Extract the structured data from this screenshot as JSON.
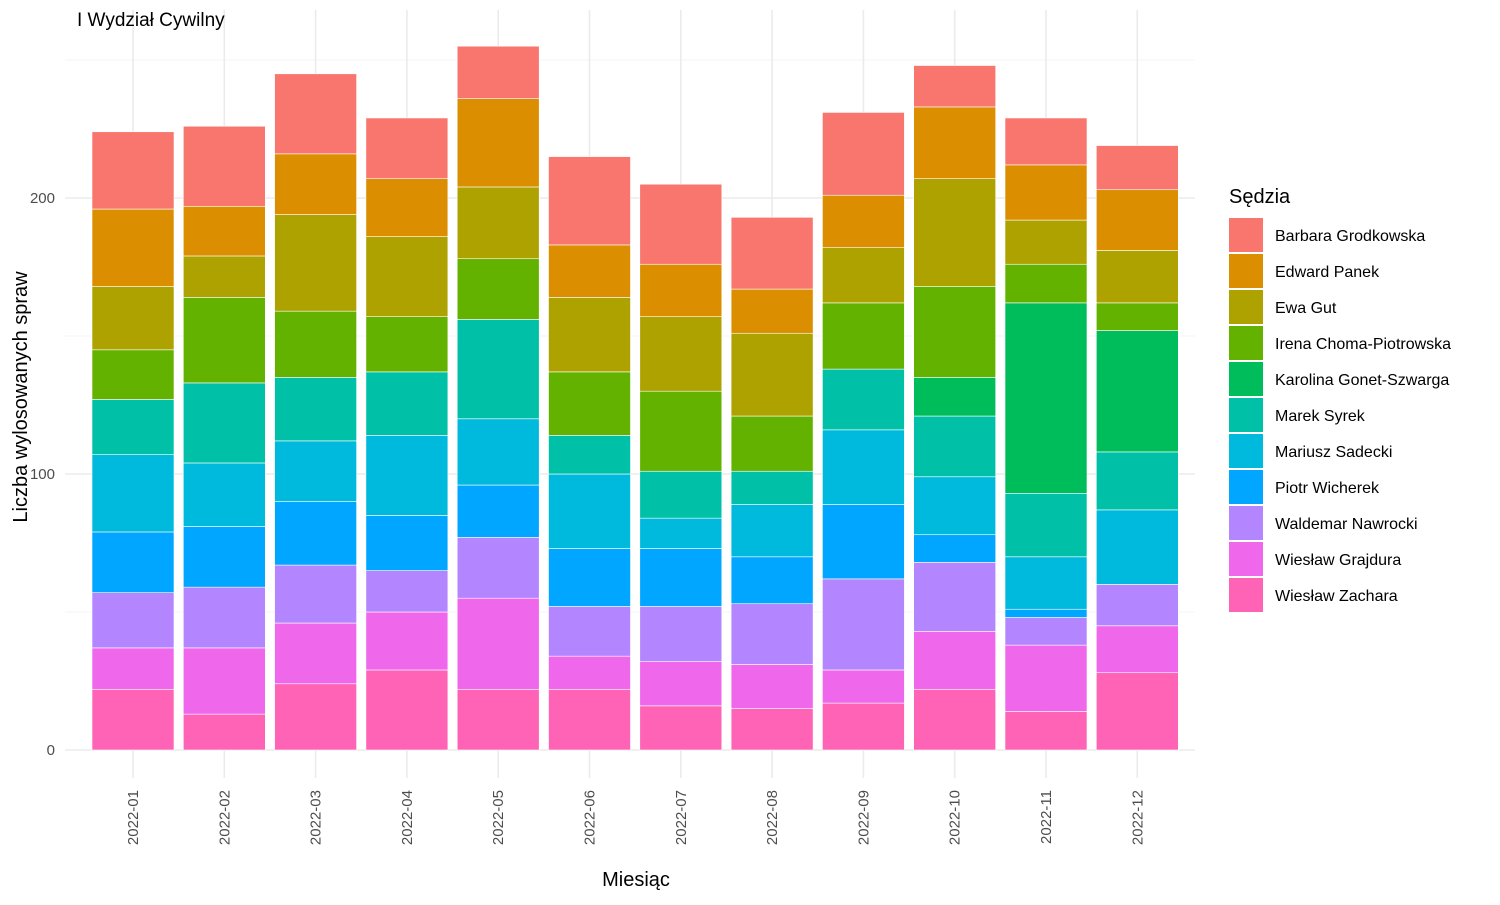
{
  "chart_data": {
    "type": "bar",
    "stacked": true,
    "title": "I Wydział Cywilny",
    "xlabel": "Miesiąc",
    "ylabel": "Liczba wylosowanych spraw",
    "ylim": [
      0,
      265
    ],
    "yticks": [
      0,
      100,
      200
    ],
    "grid": true,
    "legend_title": "Sędzia",
    "legend_position": "right",
    "categories": [
      "2022-01",
      "2022-02",
      "2022-03",
      "2022-04",
      "2022-05",
      "2022-06",
      "2022-07",
      "2022-08",
      "2022-09",
      "2022-10",
      "2022-11",
      "2022-12"
    ],
    "series": [
      {
        "name": "Barbara Grodkowska",
        "color": "#F8766D",
        "values": [
          28,
          29,
          29,
          22,
          19,
          32,
          29,
          26,
          30,
          15,
          17,
          16
        ]
      },
      {
        "name": "Edward Panek",
        "color": "#DB8E00",
        "values": [
          28,
          18,
          22,
          21,
          32,
          19,
          19,
          16,
          19,
          26,
          20,
          22
        ]
      },
      {
        "name": "Ewa Gut",
        "color": "#AEA200",
        "values": [
          23,
          15,
          35,
          29,
          26,
          27,
          27,
          30,
          20,
          39,
          16,
          19
        ]
      },
      {
        "name": "Irena Choma-Piotrowska",
        "color": "#64B200",
        "values": [
          18,
          31,
          24,
          20,
          22,
          23,
          29,
          20,
          24,
          33,
          14,
          10
        ]
      },
      {
        "name": "Karolina Gonet-Szwarga",
        "color": "#00BD5C",
        "values": [
          0,
          0,
          0,
          0,
          0,
          0,
          0,
          0,
          0,
          14,
          69,
          44
        ]
      },
      {
        "name": "Marek Syrek",
        "color": "#00C1A7",
        "values": [
          20,
          29,
          23,
          23,
          36,
          14,
          17,
          12,
          22,
          22,
          23,
          21
        ]
      },
      {
        "name": "Mariusz Sadecki",
        "color": "#00BADE",
        "values": [
          28,
          23,
          22,
          29,
          24,
          27,
          11,
          19,
          27,
          21,
          19,
          27
        ]
      },
      {
        "name": "Piotr Wicherek",
        "color": "#00A6FF",
        "values": [
          22,
          22,
          23,
          20,
          19,
          21,
          21,
          17,
          27,
          10,
          3,
          0
        ]
      },
      {
        "name": "Waldemar Nawrocki",
        "color": "#B385FF",
        "values": [
          20,
          22,
          21,
          15,
          22,
          18,
          20,
          22,
          33,
          25,
          10,
          15
        ]
      },
      {
        "name": "Wiesław Grajdura",
        "color": "#EF67EB",
        "values": [
          15,
          24,
          22,
          21,
          33,
          12,
          16,
          16,
          12,
          21,
          24,
          17
        ]
      },
      {
        "name": "Wiesław Zachara",
        "color": "#FF63B6",
        "values": [
          22,
          13,
          24,
          29,
          22,
          22,
          16,
          15,
          17,
          22,
          14,
          28
        ]
      }
    ]
  }
}
